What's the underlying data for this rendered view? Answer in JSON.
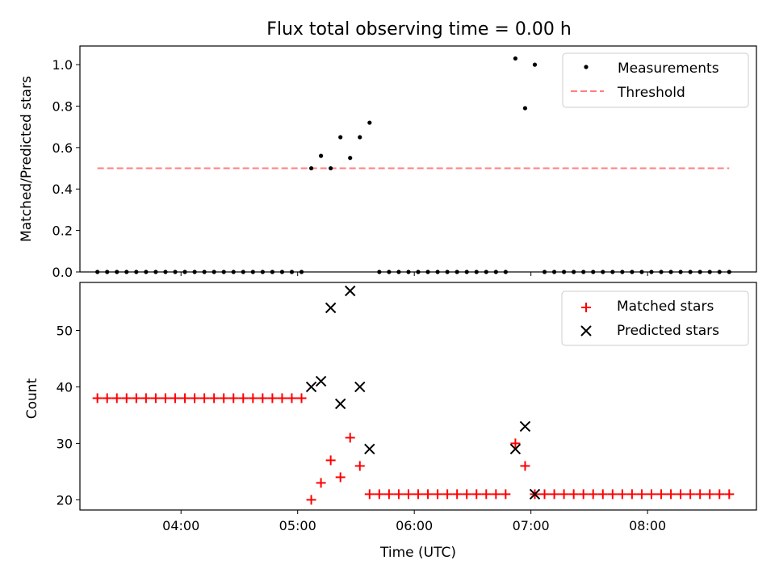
{
  "chart_data": [
    {
      "type": "scatter",
      "title": "Flux total observing time = 0.00 h",
      "xlabel": "",
      "ylabel": "Matched/Predicted stars",
      "xlim": [
        3.1333,
        8.9333
      ],
      "ylim": [
        0.0,
        1.09
      ],
      "yticks": [
        0.0,
        0.2,
        0.4,
        0.6,
        0.8,
        1.0
      ],
      "ytick_labels": [
        "0.0",
        "0.2",
        "0.4",
        "0.6",
        "0.8",
        "1.0"
      ],
      "legend": {
        "location": "top-right",
        "entries": [
          "Measurements",
          "Threshold"
        ]
      },
      "series": [
        {
          "name": "Measurements",
          "marker": "dot",
          "color": "#000000",
          "x": [
            3.2833,
            3.3667,
            3.45,
            3.5333,
            3.6167,
            3.7,
            3.7833,
            3.8667,
            3.95,
            4.0333,
            4.1167,
            4.2,
            4.2833,
            4.3667,
            4.45,
            4.5333,
            4.6167,
            4.7,
            4.7833,
            4.8667,
            4.95,
            5.0333,
            5.1167,
            5.2,
            5.2833,
            5.3667,
            5.45,
            5.5333,
            5.6167,
            5.7,
            5.7833,
            5.8667,
            5.95,
            6.0333,
            6.1167,
            6.2,
            6.2833,
            6.3667,
            6.45,
            6.5333,
            6.6167,
            6.7,
            6.7833,
            6.8667,
            6.95,
            7.0333,
            7.1167,
            7.2,
            7.2833,
            7.3667,
            7.45,
            7.5333,
            7.6167,
            7.7,
            7.7833,
            7.8667,
            7.95,
            8.0333,
            8.1167,
            8.2,
            8.2833,
            8.3667,
            8.45,
            8.5333,
            8.6167,
            8.7
          ],
          "y": [
            0,
            0,
            0,
            0,
            0,
            0,
            0,
            0,
            0,
            0,
            0,
            0,
            0,
            0,
            0,
            0,
            0,
            0,
            0,
            0,
            0,
            0,
            0.5,
            0.56,
            0.5,
            0.65,
            0.55,
            0.65,
            0.72,
            0,
            0,
            0,
            0,
            0,
            0,
            0,
            0,
            0,
            0,
            0,
            0,
            0,
            0,
            1.03,
            0.79,
            1.0,
            0,
            0,
            0,
            0,
            0,
            0,
            0,
            0,
            0,
            0,
            0,
            0,
            0,
            0,
            0,
            0,
            0,
            0,
            0,
            0
          ]
        },
        {
          "name": "Threshold",
          "line": "dashed",
          "color": "#ff7f7f",
          "x": [
            3.2833,
            8.7
          ],
          "y": [
            0.5,
            0.5
          ]
        }
      ]
    },
    {
      "type": "scatter",
      "title": "",
      "xlabel": "Time (UTC)",
      "ylabel": "Count",
      "xlim": [
        3.1333,
        8.9333
      ],
      "ylim": [
        18.2,
        58.5
      ],
      "yticks": [
        20,
        30,
        40,
        50
      ],
      "ytick_labels": [
        "20",
        "30",
        "40",
        "50"
      ],
      "xticks": [
        4,
        5,
        6,
        7,
        8
      ],
      "xtick_labels": [
        "04:00",
        "05:00",
        "06:00",
        "07:00",
        "08:00"
      ],
      "legend": {
        "location": "top-right",
        "entries": [
          "Matched stars",
          "Predicted stars"
        ]
      },
      "series": [
        {
          "name": "Matched stars",
          "marker": "plus",
          "color": "#ff0000",
          "x": [
            3.2833,
            3.3667,
            3.45,
            3.5333,
            3.6167,
            3.7,
            3.7833,
            3.8667,
            3.95,
            4.0333,
            4.1167,
            4.2,
            4.2833,
            4.3667,
            4.45,
            4.5333,
            4.6167,
            4.7,
            4.7833,
            4.8667,
            4.95,
            5.0333,
            5.1167,
            5.2,
            5.2833,
            5.3667,
            5.45,
            5.5333,
            5.6167,
            5.7,
            5.7833,
            5.8667,
            5.95,
            6.0333,
            6.1167,
            6.2,
            6.2833,
            6.3667,
            6.45,
            6.5333,
            6.6167,
            6.7,
            6.7833,
            6.8667,
            6.95,
            7.0333,
            7.1167,
            7.2,
            7.2833,
            7.3667,
            7.45,
            7.5333,
            7.6167,
            7.7,
            7.7833,
            7.8667,
            7.95,
            8.0333,
            8.1167,
            8.2,
            8.2833,
            8.3667,
            8.45,
            8.5333,
            8.6167,
            8.7
          ],
          "y": [
            38,
            38,
            38,
            38,
            38,
            38,
            38,
            38,
            38,
            38,
            38,
            38,
            38,
            38,
            38,
            38,
            38,
            38,
            38,
            38,
            38,
            38,
            20,
            23,
            27,
            24,
            31,
            26,
            21,
            21,
            21,
            21,
            21,
            21,
            21,
            21,
            21,
            21,
            21,
            21,
            21,
            21,
            21,
            30,
            26,
            21,
            21,
            21,
            21,
            21,
            21,
            21,
            21,
            21,
            21,
            21,
            21,
            21,
            21,
            21,
            21,
            21,
            21,
            21,
            21,
            21
          ]
        },
        {
          "name": "Predicted stars",
          "marker": "x",
          "color": "#000000",
          "x": [
            5.1167,
            5.2,
            5.2833,
            5.3667,
            5.45,
            5.5333,
            5.6167,
            6.8667,
            6.95,
            7.0333
          ],
          "y": [
            40,
            41,
            54,
            37,
            57,
            40,
            29,
            29,
            33,
            21
          ]
        }
      ]
    }
  ]
}
